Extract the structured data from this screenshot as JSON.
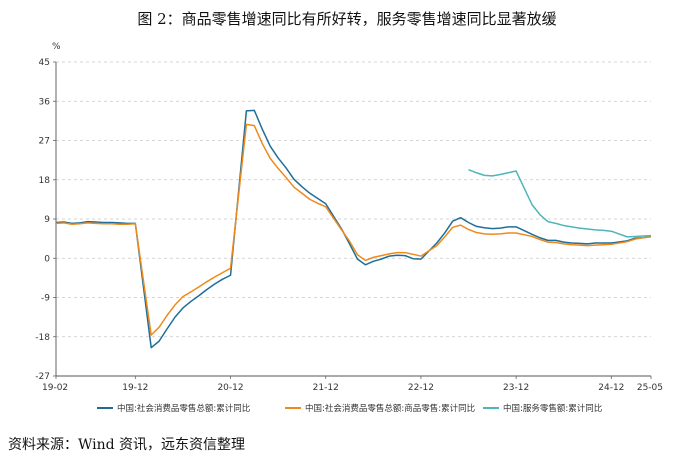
{
  "title": "图 2：商品零售增速同比有所好转，服务零售增速同比显著放缓",
  "source": "资料来源：Wind 资讯，远东资信整理",
  "chart_data": {
    "type": "line",
    "y_unit": "%",
    "ylim": [
      -27,
      45
    ],
    "y_ticks": [
      45,
      36,
      27,
      18,
      9,
      0,
      -9,
      -18,
      -27
    ],
    "x_range": [
      "2019-02",
      "2025-05"
    ],
    "x_tick_labels": [
      "19-02",
      "19-12",
      "20-12",
      "21-12",
      "22-12",
      "23-12",
      "24-12",
      "25-05"
    ],
    "x_ticks": [
      "2019-02",
      "2019-12",
      "2020-12",
      "2021-12",
      "2022-12",
      "2023-12",
      "2024-12",
      "2025-05"
    ],
    "grid": "horizontal dashed",
    "legend_position": "bottom",
    "series": [
      {
        "name": "中国:社会消费品零售总额:累计同比",
        "color": "#1f6e99",
        "points": [
          [
            "2019-02",
            8.2
          ],
          [
            "2019-03",
            8.3
          ],
          [
            "2019-04",
            8.0
          ],
          [
            "2019-05",
            8.1
          ],
          [
            "2019-06",
            8.4
          ],
          [
            "2019-07",
            8.3
          ],
          [
            "2019-08",
            8.2
          ],
          [
            "2019-09",
            8.2
          ],
          [
            "2019-10",
            8.1
          ],
          [
            "2019-11",
            8.0
          ],
          [
            "2019-12",
            8.0
          ],
          [
            "2020-02",
            -20.5
          ],
          [
            "2020-03",
            -19.0
          ],
          [
            "2020-04",
            -16.2
          ],
          [
            "2020-05",
            -13.5
          ],
          [
            "2020-06",
            -11.4
          ],
          [
            "2020-07",
            -9.9
          ],
          [
            "2020-08",
            -8.6
          ],
          [
            "2020-09",
            -7.2
          ],
          [
            "2020-10",
            -5.9
          ],
          [
            "2020-11",
            -4.8
          ],
          [
            "2020-12",
            -3.9
          ],
          [
            "2021-02",
            33.8
          ],
          [
            "2021-03",
            33.9
          ],
          [
            "2021-04",
            29.6
          ],
          [
            "2021-05",
            25.7
          ],
          [
            "2021-06",
            23.0
          ],
          [
            "2021-07",
            20.7
          ],
          [
            "2021-08",
            18.1
          ],
          [
            "2021-09",
            16.4
          ],
          [
            "2021-10",
            14.9
          ],
          [
            "2021-11",
            13.7
          ],
          [
            "2021-12",
            12.5
          ],
          [
            "2022-02",
            6.7
          ],
          [
            "2022-03",
            3.3
          ],
          [
            "2022-04",
            -0.2
          ],
          [
            "2022-05",
            -1.5
          ],
          [
            "2022-06",
            -0.7
          ],
          [
            "2022-07",
            -0.2
          ],
          [
            "2022-08",
            0.5
          ],
          [
            "2022-09",
            0.7
          ],
          [
            "2022-10",
            0.6
          ],
          [
            "2022-11",
            -0.1
          ],
          [
            "2022-12",
            -0.2
          ],
          [
            "2023-02",
            3.5
          ],
          [
            "2023-03",
            5.8
          ],
          [
            "2023-04",
            8.5
          ],
          [
            "2023-05",
            9.3
          ],
          [
            "2023-06",
            8.2
          ],
          [
            "2023-07",
            7.3
          ],
          [
            "2023-08",
            7.0
          ],
          [
            "2023-09",
            6.8
          ],
          [
            "2023-10",
            6.9
          ],
          [
            "2023-11",
            7.2
          ],
          [
            "2023-12",
            7.2
          ],
          [
            "2024-02",
            5.5
          ],
          [
            "2024-03",
            4.7
          ],
          [
            "2024-04",
            4.1
          ],
          [
            "2024-05",
            4.1
          ],
          [
            "2024-06",
            3.7
          ],
          [
            "2024-07",
            3.5
          ],
          [
            "2024-08",
            3.4
          ],
          [
            "2024-09",
            3.3
          ],
          [
            "2024-10",
            3.5
          ],
          [
            "2024-11",
            3.5
          ],
          [
            "2024-12",
            3.5
          ],
          [
            "2025-02",
            4.0
          ],
          [
            "2025-03",
            4.6
          ],
          [
            "2025-04",
            4.7
          ],
          [
            "2025-05",
            5.0
          ]
        ]
      },
      {
        "name": "中国:社会消费品零售总额:商品零售:累计同比",
        "color": "#ee8a1c",
        "points": [
          [
            "2019-02",
            8.0
          ],
          [
            "2019-03",
            8.1
          ],
          [
            "2019-04",
            7.8
          ],
          [
            "2019-05",
            7.9
          ],
          [
            "2019-06",
            8.1
          ],
          [
            "2019-07",
            8.0
          ],
          [
            "2019-08",
            7.9
          ],
          [
            "2019-09",
            7.9
          ],
          [
            "2019-10",
            7.8
          ],
          [
            "2019-11",
            7.8
          ],
          [
            "2019-12",
            7.9
          ],
          [
            "2020-02",
            -17.6
          ],
          [
            "2020-03",
            -15.8
          ],
          [
            "2020-04",
            -13.1
          ],
          [
            "2020-05",
            -10.7
          ],
          [
            "2020-06",
            -8.8
          ],
          [
            "2020-07",
            -7.7
          ],
          [
            "2020-08",
            -6.6
          ],
          [
            "2020-09",
            -5.4
          ],
          [
            "2020-10",
            -4.3
          ],
          [
            "2020-11",
            -3.3
          ],
          [
            "2020-12",
            -2.3
          ],
          [
            "2021-02",
            30.7
          ],
          [
            "2021-03",
            30.4
          ],
          [
            "2021-04",
            26.3
          ],
          [
            "2021-05",
            22.9
          ],
          [
            "2021-06",
            20.6
          ],
          [
            "2021-07",
            18.5
          ],
          [
            "2021-08",
            16.3
          ],
          [
            "2021-09",
            14.9
          ],
          [
            "2021-10",
            13.5
          ],
          [
            "2021-11",
            12.6
          ],
          [
            "2021-12",
            11.8
          ],
          [
            "2022-02",
            6.5
          ],
          [
            "2022-03",
            3.9
          ],
          [
            "2022-04",
            0.8
          ],
          [
            "2022-05",
            -0.5
          ],
          [
            "2022-06",
            0.2
          ],
          [
            "2022-07",
            0.6
          ],
          [
            "2022-08",
            1.0
          ],
          [
            "2022-09",
            1.3
          ],
          [
            "2022-10",
            1.3
          ],
          [
            "2022-11",
            0.9
          ],
          [
            "2022-12",
            0.5
          ],
          [
            "2023-02",
            2.9
          ],
          [
            "2023-03",
            4.9
          ],
          [
            "2023-04",
            7.1
          ],
          [
            "2023-05",
            7.6
          ],
          [
            "2023-06",
            6.6
          ],
          [
            "2023-07",
            5.9
          ],
          [
            "2023-08",
            5.6
          ],
          [
            "2023-09",
            5.5
          ],
          [
            "2023-10",
            5.6
          ],
          [
            "2023-11",
            5.8
          ],
          [
            "2023-12",
            5.8
          ],
          [
            "2024-02",
            5.0
          ],
          [
            "2024-03",
            4.3
          ],
          [
            "2024-04",
            3.7
          ],
          [
            "2024-05",
            3.6
          ],
          [
            "2024-06",
            3.3
          ],
          [
            "2024-07",
            3.1
          ],
          [
            "2024-08",
            3.0
          ],
          [
            "2024-09",
            2.9
          ],
          [
            "2024-10",
            3.0
          ],
          [
            "2024-11",
            3.1
          ],
          [
            "2024-12",
            3.2
          ],
          [
            "2025-02",
            3.8
          ],
          [
            "2025-03",
            4.4
          ],
          [
            "2025-04",
            4.7
          ],
          [
            "2025-05",
            4.9
          ]
        ]
      },
      {
        "name": "中国:服务零售额:累计同比",
        "color": "#4fb5b9",
        "points": [
          [
            "2023-06",
            20.3
          ],
          [
            "2023-07",
            19.6
          ],
          [
            "2023-08",
            19.0
          ],
          [
            "2023-09",
            18.9
          ],
          [
            "2023-10",
            19.2
          ],
          [
            "2023-11",
            19.6
          ],
          [
            "2023-12",
            20.0
          ],
          [
            "2024-02",
            12.3
          ],
          [
            "2024-03",
            10.0
          ],
          [
            "2024-04",
            8.4
          ],
          [
            "2024-05",
            8.0
          ],
          [
            "2024-06",
            7.5
          ],
          [
            "2024-07",
            7.2
          ],
          [
            "2024-08",
            6.9
          ],
          [
            "2024-09",
            6.7
          ],
          [
            "2024-10",
            6.5
          ],
          [
            "2024-11",
            6.4
          ],
          [
            "2024-12",
            6.2
          ],
          [
            "2025-02",
            4.9
          ],
          [
            "2025-03",
            5.0
          ],
          [
            "2025-04",
            5.1
          ],
          [
            "2025-05",
            5.2
          ]
        ]
      }
    ]
  }
}
